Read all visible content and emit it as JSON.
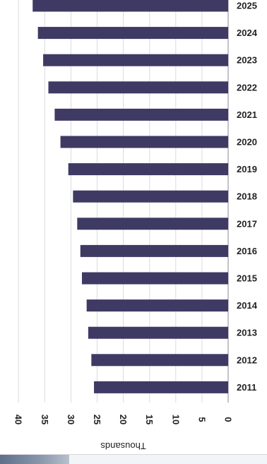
{
  "chart_data": {
    "type": "bar",
    "orientation": "horizontal",
    "title": "",
    "xlabel": "Thousands",
    "ylabel": "",
    "categories": [
      "2025",
      "2024",
      "2023",
      "2022",
      "2021",
      "2020",
      "2019",
      "2018",
      "2017",
      "2016",
      "2015",
      "2014",
      "2013",
      "2012",
      "2011"
    ],
    "values": [
      37.3,
      36.3,
      35.3,
      34.3,
      33.1,
      32.0,
      30.5,
      29.6,
      28.8,
      28.2,
      27.9,
      27.0,
      26.7,
      26.1,
      25.6
    ],
    "xlim": [
      0,
      40
    ],
    "xticks": [
      0,
      5,
      10,
      15,
      20,
      25,
      30,
      35,
      40
    ],
    "xaxis_reversed": true,
    "grid": true,
    "bar_color": "#3f3a63"
  }
}
